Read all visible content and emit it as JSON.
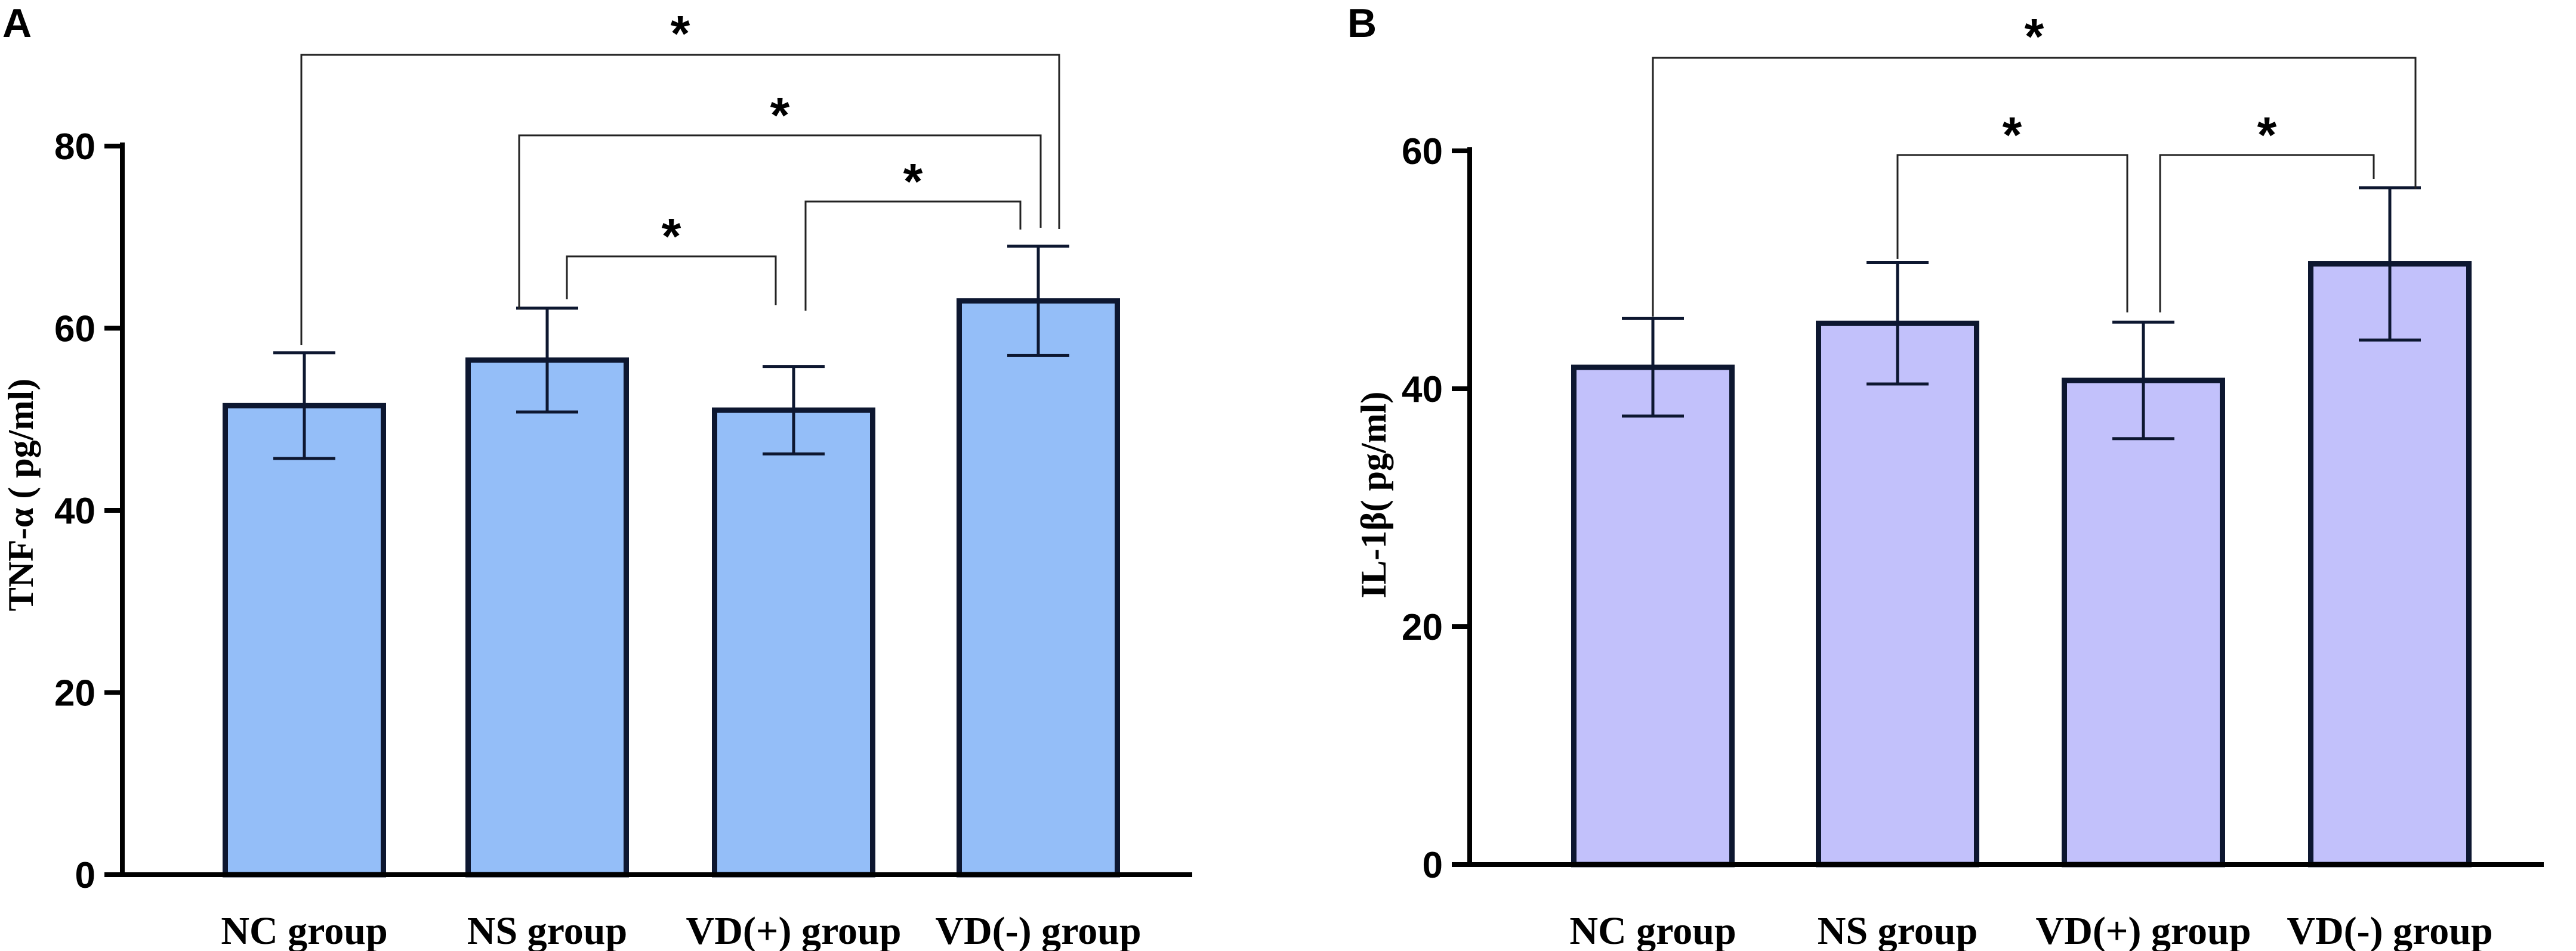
{
  "chart_data": [
    {
      "type": "bar",
      "panel": "A",
      "categories": [
        "NC group",
        "NS group",
        "VD(+) group",
        "VD(-) group"
      ],
      "values": [
        51.5,
        56.5,
        51.0,
        63.0
      ],
      "errors": [
        5.8,
        5.7,
        4.8,
        6.0
      ],
      "ylabel": "TNF-α ( pg/ml)",
      "ylim": [
        0,
        80
      ],
      "yticks": [
        "0",
        "20",
        "40",
        "60",
        "80"
      ],
      "ytick_values": [
        0,
        20,
        40,
        60,
        80
      ],
      "bar_color": "#94bef8",
      "edge_color": "#0d1730",
      "significance": [
        {
          "from": 1,
          "to": 2,
          "label": "*"
        },
        {
          "from": 2,
          "to": 3,
          "label": "*"
        },
        {
          "from": 1,
          "to": 3,
          "label": "*"
        },
        {
          "from": 0,
          "to": 3,
          "label": "*"
        }
      ]
    },
    {
      "type": "bar",
      "panel": "B",
      "categories": [
        "NC group",
        "NS group",
        "VD(+) group",
        "VD(-) group"
      ],
      "values": [
        41.8,
        45.5,
        40.7,
        50.5
      ],
      "errors": [
        4.1,
        5.1,
        4.9,
        6.4
      ],
      "ylabel": "IL-1β( pg/ml)",
      "ylim": [
        0,
        60
      ],
      "yticks": [
        "0",
        "20",
        "40",
        "60"
      ],
      "ytick_values": [
        0,
        20,
        40,
        60
      ],
      "bar_color": "#c2c1fb",
      "edge_color": "#0d1730",
      "significance": [
        {
          "from": 1,
          "to": 2,
          "label": "*"
        },
        {
          "from": 2,
          "to": 3,
          "label": "*"
        },
        {
          "from": 0,
          "to": 3,
          "label": "*"
        }
      ]
    }
  ]
}
